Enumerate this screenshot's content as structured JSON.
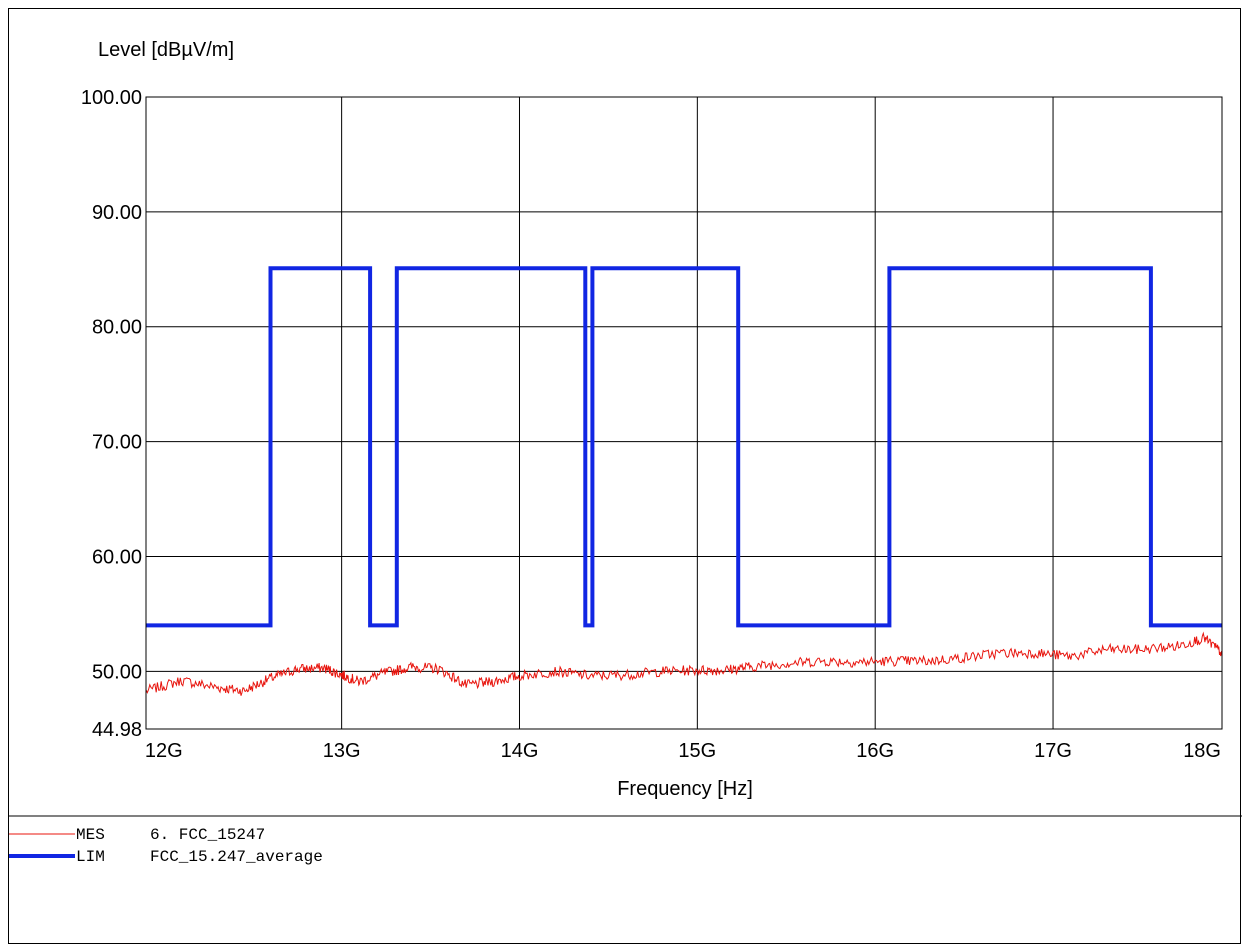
{
  "chart_data": {
    "type": "line",
    "ylabel": "Level [dBµV/m]",
    "xlabel": "Frequency [Hz]",
    "xlim": [
      11900000000.0,
      17950000000.0
    ],
    "ylim": [
      44.98,
      100.0
    ],
    "y_ticks": [
      100.0,
      90.0,
      80.0,
      70.0,
      60.0,
      50.0,
      44.98
    ],
    "y_tick_labels": [
      "100.00",
      "90.00",
      "80.00",
      "70.00",
      "60.00",
      "50.00",
      "44.98"
    ],
    "y_grid": [
      100.0,
      90.0,
      80.0,
      70.0,
      60.0,
      50.0
    ],
    "x_ticks": [
      12000000000.0,
      13000000000.0,
      14000000000.0,
      15000000000.0,
      16000000000.0,
      17000000000.0,
      18000000000.0
    ],
    "x_tick_labels": [
      "12G",
      "13G",
      "14G",
      "15G",
      "16G",
      "17G",
      "18G"
    ],
    "x_grid": [
      13000000000.0,
      14000000000.0,
      15000000000.0,
      16000000000.0,
      17000000000.0
    ],
    "grid": true,
    "legend_placement": "bottom-left",
    "series": [
      {
        "name": "MES   6. FCC_15247",
        "legend_code": "MES",
        "legend_text": "6. FCC_15247",
        "color": "#e8150e",
        "style": "thin-noisy",
        "x": [
          11900000000.0,
          12100000000.0,
          12300000000.0,
          12450000000.0,
          12600000000.0,
          12750000000.0,
          12900000000.0,
          13000000000.0,
          13100000000.0,
          13250000000.0,
          13400000000.0,
          13550000000.0,
          13700000000.0,
          13850000000.0,
          14000000000.0,
          14200000000.0,
          14400000000.0,
          14600000000.0,
          14800000000.0,
          15000000000.0,
          15150000000.0,
          15300000000.0,
          15500000000.0,
          15700000000.0,
          15900000000.0,
          16100000000.0,
          16300000000.0,
          16500000000.0,
          16700000000.0,
          16900000000.0,
          17100000000.0,
          17300000000.0,
          17500000000.0,
          17700000000.0,
          17850000000.0,
          17950000000.0
        ],
        "values": [
          48.3,
          49.2,
          48.6,
          48.3,
          49.4,
          50.2,
          50.3,
          49.7,
          49.1,
          49.9,
          50.4,
          50.2,
          48.8,
          49.1,
          49.6,
          50.0,
          49.6,
          49.7,
          50.0,
          50.1,
          50.1,
          50.4,
          50.7,
          50.9,
          50.8,
          50.9,
          50.9,
          51.2,
          51.6,
          51.6,
          51.3,
          51.9,
          51.9,
          52.2,
          52.9,
          51.6
        ]
      },
      {
        "name": "LIM   FCC_15.247_average",
        "legend_code": "LIM",
        "legend_text": "FCC_15.247_average",
        "color": "#1126e3",
        "style": "thick-step",
        "x": [
          11900000000.0,
          12600000000.0,
          12600000000.0,
          13160000000.0,
          13160000000.0,
          13310000000.0,
          13310000000.0,
          14370000000.0,
          14370000000.0,
          14410000000.0,
          14410000000.0,
          15230000000.0,
          15230000000.0,
          16080000000.0,
          16080000000.0,
          17550000000.0,
          17550000000.0,
          17950000000.0
        ],
        "values": [
          54.0,
          54.0,
          85.1,
          85.1,
          54.0,
          54.0,
          85.1,
          85.1,
          54.0,
          54.0,
          85.1,
          85.1,
          54.0,
          54.0,
          85.1,
          85.1,
          54.0,
          54.0
        ]
      }
    ]
  }
}
